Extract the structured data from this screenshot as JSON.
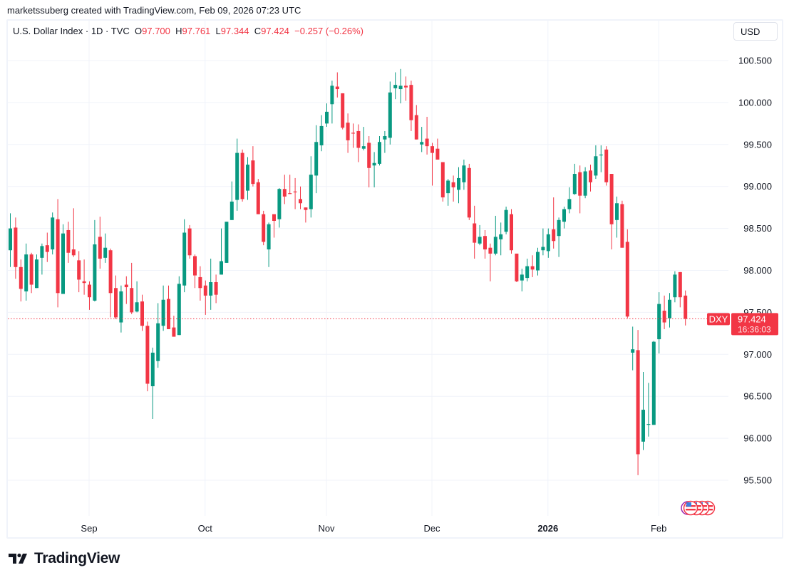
{
  "header": {
    "credit": "marketssuberg created with TradingView.com, Feb 09, 2026 07:23 UTC",
    "symbol_line": "U.S. Dollar Index · 1D · TVC",
    "o_label": "O",
    "o_value": "97.700",
    "h_label": "H",
    "h_value": "97.761",
    "l_label": "L",
    "l_value": "97.344",
    "c_label": "C",
    "c_value": "97.424",
    "change": "−0.257 (−0.26%)"
  },
  "currency_button": "USD",
  "price_tag": {
    "symbol": "DXY",
    "price": "97.424",
    "countdown": "16:36:03"
  },
  "brand": "TradingView",
  "events": {
    "icon": "us-flag-event-icons",
    "count": 4
  },
  "colors": {
    "up": "#089981",
    "down": "#f23645",
    "grid": "#f0f3fa",
    "text": "#131722"
  },
  "chart_data": {
    "type": "candlestick",
    "title": "U.S. Dollar Index · 1D · TVC",
    "ylim": [
      95.1,
      100.8
    ],
    "yticks": [
      "95.500",
      "96.000",
      "96.500",
      "97.000",
      "97.500",
      "98.000",
      "98.500",
      "99.000",
      "99.500",
      "100.000",
      "100.500"
    ],
    "xticks": [
      {
        "label": "Sep",
        "date": "2025-09-01"
      },
      {
        "label": "Oct",
        "date": "2025-10-01"
      },
      {
        "label": "Nov",
        "date": "2025-11-03"
      },
      {
        "label": "Dec",
        "date": "2025-12-01"
      },
      {
        "label": "2026",
        "date": "2026-01-02"
      },
      {
        "label": "Feb",
        "date": "2026-02-02"
      }
    ],
    "grid": true,
    "last_price": 97.424,
    "fields": [
      "date",
      "open",
      "high",
      "low",
      "close"
    ],
    "candles": [
      [
        "2025-08-11",
        98.24,
        98.68,
        98.04,
        98.5
      ],
      [
        "2025-08-12",
        98.51,
        98.63,
        97.9,
        98.04
      ],
      [
        "2025-08-13",
        98.04,
        98.13,
        97.63,
        97.78
      ],
      [
        "2025-08-14",
        97.75,
        98.32,
        97.64,
        98.19
      ],
      [
        "2025-08-15",
        98.19,
        98.21,
        97.73,
        97.83
      ],
      [
        "2025-08-18",
        97.79,
        98.19,
        97.79,
        98.13
      ],
      [
        "2025-08-19",
        98.15,
        98.32,
        97.95,
        98.29
      ],
      [
        "2025-08-20",
        98.3,
        98.45,
        98.1,
        98.22
      ],
      [
        "2025-08-21",
        98.25,
        98.69,
        98.19,
        98.63
      ],
      [
        "2025-08-22",
        98.61,
        98.85,
        97.56,
        97.73
      ],
      [
        "2025-08-25",
        97.72,
        98.55,
        97.72,
        98.44
      ],
      [
        "2025-08-26",
        98.48,
        98.58,
        98.09,
        98.21
      ],
      [
        "2025-08-27",
        98.25,
        98.74,
        98.16,
        98.18
      ],
      [
        "2025-08-28",
        98.12,
        98.23,
        97.74,
        97.89
      ],
      [
        "2025-08-29",
        97.87,
        98.13,
        97.71,
        97.85
      ],
      [
        "2025-09-01",
        97.83,
        97.87,
        97.53,
        97.68
      ],
      [
        "2025-09-02",
        97.64,
        98.6,
        97.63,
        98.31
      ],
      [
        "2025-09-03",
        98.4,
        98.64,
        98.02,
        98.14
      ],
      [
        "2025-09-04",
        98.15,
        98.44,
        98.09,
        98.27
      ],
      [
        "2025-09-05",
        98.24,
        98.26,
        97.44,
        97.73
      ],
      [
        "2025-09-08",
        97.79,
        97.94,
        97.42,
        97.44
      ],
      [
        "2025-09-09",
        97.38,
        97.82,
        97.26,
        97.75
      ],
      [
        "2025-09-10",
        97.83,
        97.93,
        97.6,
        97.8
      ],
      [
        "2025-09-11",
        97.79,
        98.09,
        97.48,
        97.5
      ],
      [
        "2025-09-12",
        97.51,
        97.87,
        97.5,
        97.62
      ],
      [
        "2025-09-15",
        97.63,
        97.71,
        97.28,
        97.34
      ],
      [
        "2025-09-16",
        97.34,
        97.39,
        96.56,
        96.65
      ],
      [
        "2025-09-17",
        96.62,
        97.08,
        96.23,
        97.02
      ],
      [
        "2025-09-18",
        96.92,
        97.61,
        96.84,
        97.37
      ],
      [
        "2025-09-19",
        97.34,
        97.82,
        97.28,
        97.65
      ],
      [
        "2025-09-22",
        97.66,
        97.82,
        97.3,
        97.3
      ],
      [
        "2025-09-23",
        97.32,
        97.46,
        97.21,
        97.21
      ],
      [
        "2025-09-24",
        97.23,
        97.93,
        97.23,
        97.84
      ],
      [
        "2025-09-25",
        97.82,
        98.61,
        97.74,
        98.45
      ],
      [
        "2025-09-26",
        98.5,
        98.54,
        98.14,
        98.18
      ],
      [
        "2025-09-29",
        98.17,
        98.19,
        97.79,
        97.94
      ],
      [
        "2025-09-30",
        97.92,
        98.05,
        97.64,
        97.79
      ],
      [
        "2025-10-01",
        97.82,
        97.88,
        97.47,
        97.7
      ],
      [
        "2025-10-02",
        97.7,
        98.14,
        97.53,
        97.86
      ],
      [
        "2025-10-03",
        97.86,
        97.95,
        97.61,
        97.71
      ],
      [
        "2025-10-06",
        97.95,
        98.5,
        97.95,
        98.11
      ],
      [
        "2025-10-07",
        98.09,
        98.58,
        98.09,
        98.58
      ],
      [
        "2025-10-08",
        98.6,
        99.06,
        98.6,
        98.82
      ],
      [
        "2025-10-09",
        98.84,
        99.57,
        98.71,
        99.4
      ],
      [
        "2025-10-10",
        99.4,
        99.44,
        98.82,
        98.85
      ],
      [
        "2025-10-13",
        98.95,
        99.35,
        98.84,
        99.26
      ],
      [
        "2025-10-14",
        99.31,
        99.48,
        99.0,
        99.03
      ],
      [
        "2025-10-15",
        99.05,
        99.09,
        98.67,
        98.67
      ],
      [
        "2025-10-16",
        98.67,
        98.71,
        98.3,
        98.34
      ],
      [
        "2025-10-17",
        98.25,
        98.57,
        98.04,
        98.55
      ],
      [
        "2025-10-20",
        98.67,
        98.67,
        98.39,
        98.59
      ],
      [
        "2025-10-21",
        98.61,
        98.98,
        98.51,
        98.97
      ],
      [
        "2025-10-22",
        98.97,
        99.14,
        98.79,
        98.88
      ],
      [
        "2025-10-23",
        98.92,
        99.14,
        98.91,
        98.91
      ],
      [
        "2025-10-24",
        98.94,
        99.1,
        98.73,
        98.93
      ],
      [
        "2025-10-27",
        98.85,
        99.0,
        98.73,
        98.8
      ],
      [
        "2025-10-28",
        98.75,
        98.75,
        98.57,
        98.72
      ],
      [
        "2025-10-29",
        98.73,
        99.36,
        98.63,
        99.14
      ],
      [
        "2025-10-30",
        99.13,
        99.73,
        98.92,
        99.53
      ],
      [
        "2025-10-31",
        99.49,
        99.85,
        99.42,
        99.72
      ],
      [
        "2025-11-03",
        99.75,
        99.99,
        99.71,
        99.89
      ],
      [
        "2025-11-04",
        99.98,
        100.26,
        99.75,
        100.2
      ],
      [
        "2025-11-05",
        100.19,
        100.36,
        100.06,
        100.16
      ],
      [
        "2025-11-06",
        100.11,
        100.11,
        99.68,
        99.7
      ],
      [
        "2025-11-07",
        99.76,
        99.87,
        99.4,
        99.55
      ],
      [
        "2025-11-10",
        99.64,
        99.75,
        99.46,
        99.63
      ],
      [
        "2025-11-11",
        99.66,
        99.74,
        99.29,
        99.46
      ],
      [
        "2025-11-12",
        99.45,
        99.71,
        99.43,
        99.48
      ],
      [
        "2025-11-13",
        99.52,
        99.6,
        98.99,
        99.22
      ],
      [
        "2025-11-14",
        99.25,
        99.41,
        98.99,
        99.28
      ],
      [
        "2025-11-17",
        99.27,
        99.6,
        99.25,
        99.53
      ],
      [
        "2025-11-18",
        99.56,
        99.66,
        99.4,
        99.6
      ],
      [
        "2025-11-19",
        99.58,
        100.25,
        99.5,
        100.12
      ],
      [
        "2025-11-20",
        100.17,
        100.36,
        100.04,
        100.21
      ],
      [
        "2025-11-21",
        100.16,
        100.4,
        99.99,
        100.2
      ],
      [
        "2025-11-24",
        100.2,
        100.31,
        100.02,
        100.18
      ],
      [
        "2025-11-25",
        100.21,
        100.26,
        99.66,
        99.79
      ],
      [
        "2025-11-26",
        99.85,
        99.97,
        99.56,
        99.56
      ],
      [
        "2025-11-27",
        99.5,
        99.71,
        99.41,
        99.53
      ],
      [
        "2025-11-28",
        99.57,
        99.83,
        99.38,
        99.48
      ],
      [
        "2025-12-01",
        99.48,
        99.52,
        99.01,
        99.4
      ],
      [
        "2025-12-02",
        99.45,
        99.57,
        99.32,
        99.32
      ],
      [
        "2025-12-03",
        99.29,
        99.29,
        98.82,
        98.87
      ],
      [
        "2025-12-04",
        98.92,
        99.09,
        98.77,
        99.07
      ],
      [
        "2025-12-05",
        99.05,
        99.13,
        98.82,
        98.99
      ],
      [
        "2025-12-08",
        98.96,
        99.23,
        98.8,
        99.1
      ],
      [
        "2025-12-09",
        99.05,
        99.32,
        98.96,
        99.25
      ],
      [
        "2025-12-10",
        99.22,
        99.27,
        98.6,
        98.63
      ],
      [
        "2025-12-11",
        98.56,
        98.77,
        98.14,
        98.33
      ],
      [
        "2025-12-12",
        98.32,
        98.54,
        98.3,
        98.4
      ],
      [
        "2025-12-15",
        98.41,
        98.48,
        98.14,
        98.25
      ],
      [
        "2025-12-16",
        98.27,
        98.32,
        97.87,
        98.2
      ],
      [
        "2025-12-17",
        98.2,
        98.65,
        98.18,
        98.4
      ],
      [
        "2025-12-18",
        98.37,
        98.57,
        98.18,
        98.43
      ],
      [
        "2025-12-19",
        98.46,
        98.76,
        98.43,
        98.72
      ],
      [
        "2025-12-22",
        98.67,
        98.73,
        98.2,
        98.24
      ],
      [
        "2025-12-23",
        98.2,
        98.2,
        97.86,
        97.87
      ],
      [
        "2025-12-24",
        97.88,
        98.02,
        97.75,
        97.95
      ],
      [
        "2025-12-26",
        97.91,
        98.14,
        97.87,
        98.05
      ],
      [
        "2025-12-29",
        98.05,
        98.18,
        97.92,
        98.01
      ],
      [
        "2025-12-30",
        98.0,
        98.27,
        97.94,
        98.22
      ],
      [
        "2025-12-31",
        98.24,
        98.5,
        98.18,
        98.28
      ],
      [
        "2026-01-02",
        98.23,
        98.5,
        98.15,
        98.43
      ],
      [
        "2026-01-05",
        98.49,
        98.87,
        98.26,
        98.35
      ],
      [
        "2026-01-06",
        98.41,
        98.63,
        98.16,
        98.6
      ],
      [
        "2026-01-07",
        98.58,
        98.76,
        98.5,
        98.73
      ],
      [
        "2026-01-08",
        98.73,
        98.99,
        98.68,
        98.85
      ],
      [
        "2026-01-09",
        98.91,
        99.27,
        98.9,
        99.15
      ],
      [
        "2026-01-12",
        99.17,
        99.25,
        98.68,
        98.89
      ],
      [
        "2026-01-13",
        98.89,
        99.23,
        98.86,
        99.18
      ],
      [
        "2026-01-14",
        99.19,
        99.26,
        98.94,
        99.05
      ],
      [
        "2026-01-15",
        99.13,
        99.49,
        99.09,
        99.36
      ],
      [
        "2026-01-16",
        99.37,
        99.49,
        99.17,
        99.38
      ],
      [
        "2026-01-19",
        99.44,
        99.48,
        99.01,
        99.05
      ],
      [
        "2026-01-20",
        99.15,
        99.15,
        98.25,
        98.55
      ],
      [
        "2026-01-21",
        98.6,
        98.88,
        98.39,
        98.8
      ],
      [
        "2026-01-22",
        98.79,
        98.83,
        98.27,
        98.27
      ],
      [
        "2026-01-23",
        98.34,
        98.49,
        97.43,
        97.45
      ],
      [
        "2026-01-26",
        97.02,
        97.33,
        96.81,
        97.06
      ],
      [
        "2026-01-27",
        97.05,
        97.29,
        95.56,
        95.81
      ],
      [
        "2026-01-28",
        95.96,
        96.79,
        95.86,
        96.34
      ],
      [
        "2026-01-29",
        96.16,
        96.66,
        96.02,
        96.17
      ],
      [
        "2026-01-30",
        96.16,
        97.16,
        96.16,
        97.15
      ],
      [
        "2026-02-02",
        97.18,
        97.74,
        97.01,
        97.6
      ],
      [
        "2026-02-03",
        97.52,
        97.7,
        97.3,
        97.38
      ],
      [
        "2026-02-04",
        97.43,
        97.73,
        97.32,
        97.65
      ],
      [
        "2026-02-05",
        97.68,
        97.99,
        97.62,
        97.95
      ],
      [
        "2026-02-06",
        97.98,
        97.98,
        97.56,
        97.68
      ],
      [
        "2026-02-09",
        97.7,
        97.761,
        97.344,
        97.424
      ]
    ]
  }
}
